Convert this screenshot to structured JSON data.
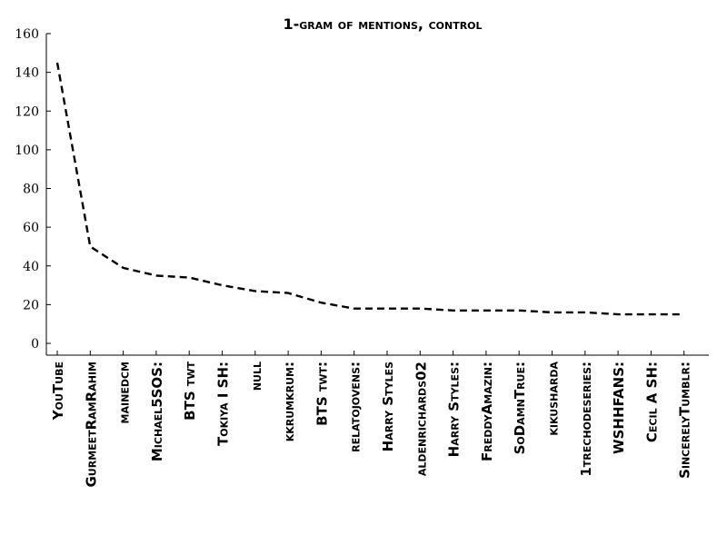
{
  "chart_data": {
    "type": "line",
    "title": "1-gram of mentions, control",
    "xlabel": "",
    "ylabel": "",
    "ylim": [
      0,
      160
    ],
    "yticks": [
      0,
      20,
      40,
      60,
      80,
      100,
      120,
      140,
      160
    ],
    "grid": false,
    "categories": [
      "YouTube",
      "GurmeetRamRahim",
      "mainedcm",
      "Michael5SOS:",
      "BTS twt",
      "Tokiya I SH:",
      "null",
      "kkrumkrum:",
      "BTS twt:",
      "relatojovens:",
      "Harry Styles",
      "aldenrichards02",
      "Harry Styles:",
      "FreddyAmazin:",
      "SoDamnTrue:",
      "kikusharda",
      "1trechodeseries:",
      "WSHHFANS:",
      "Cecil A SH:",
      "SincerelyTumblr:"
    ],
    "series": [
      {
        "values": [
          145,
          50,
          39,
          35,
          34,
          30,
          27,
          26,
          21,
          18,
          18,
          18,
          17,
          17,
          17,
          16,
          16,
          15,
          15,
          15
        ]
      }
    ]
  }
}
